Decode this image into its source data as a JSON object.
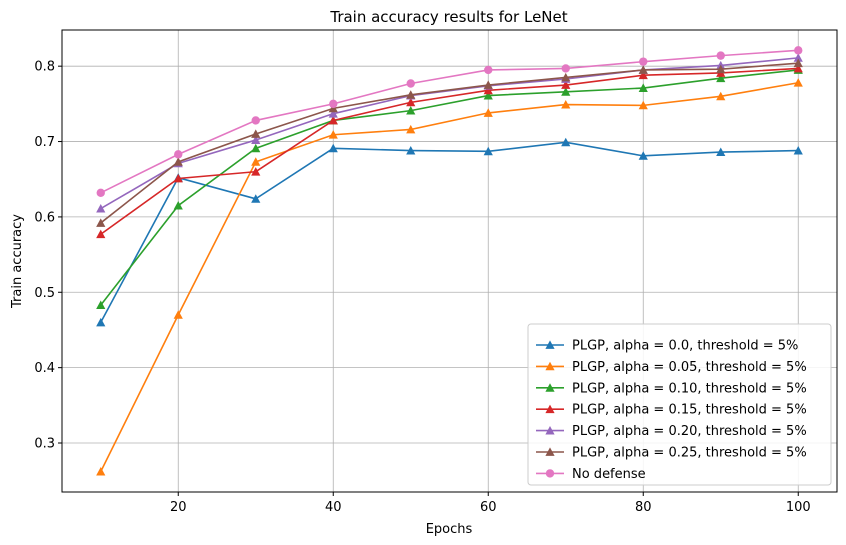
{
  "chart_data": {
    "type": "line",
    "title": "Train accuracy results for LeNet",
    "xlabel": "Epochs",
    "ylabel": "Train accuracy",
    "xlim": [
      5,
      105
    ],
    "ylim": [
      0.235,
      0.848
    ],
    "x_ticks": [
      20,
      40,
      60,
      80,
      100
    ],
    "y_ticks": [
      0.3,
      0.4,
      0.5,
      0.6,
      0.7,
      0.8
    ],
    "grid": true,
    "legend_position": "lower right",
    "x": [
      10,
      20,
      30,
      40,
      50,
      60,
      70,
      80,
      90,
      100
    ],
    "series": [
      {
        "name": "PLGP, alpha = 0.0, threshold = 5%",
        "color": "#1f77b4",
        "marker": "triangle",
        "values": [
          0.46,
          0.652,
          0.624,
          0.691,
          0.688,
          0.687,
          0.699,
          0.681,
          0.686,
          0.688
        ]
      },
      {
        "name": "PLGP, alpha = 0.05, threshold = 5%",
        "color": "#ff7f0e",
        "marker": "triangle",
        "values": [
          0.262,
          0.47,
          0.673,
          0.709,
          0.716,
          0.738,
          0.749,
          0.748,
          0.76,
          0.778
        ]
      },
      {
        "name": "PLGP, alpha = 0.10, threshold = 5%",
        "color": "#2ca02c",
        "marker": "triangle",
        "values": [
          0.483,
          0.615,
          0.691,
          0.728,
          0.741,
          0.761,
          0.766,
          0.771,
          0.784,
          0.795
        ]
      },
      {
        "name": "PLGP, alpha = 0.15, threshold = 5%",
        "color": "#d62728",
        "marker": "triangle",
        "values": [
          0.577,
          0.651,
          0.66,
          0.728,
          0.752,
          0.768,
          0.775,
          0.788,
          0.791,
          0.797
        ]
      },
      {
        "name": "PLGP, alpha = 0.20, threshold = 5%",
        "color": "#9467bd",
        "marker": "triangle",
        "values": [
          0.611,
          0.671,
          0.702,
          0.737,
          0.761,
          0.774,
          0.783,
          0.795,
          0.801,
          0.811
        ]
      },
      {
        "name": "PLGP, alpha = 0.25, threshold = 5%",
        "color": "#8c564b",
        "marker": "triangle",
        "values": [
          0.592,
          0.673,
          0.71,
          0.744,
          0.762,
          0.775,
          0.785,
          0.795,
          0.796,
          0.804
        ]
      },
      {
        "name": "No defense",
        "color": "#e377c2",
        "marker": "circle",
        "values": [
          0.632,
          0.683,
          0.728,
          0.75,
          0.777,
          0.795,
          0.797,
          0.806,
          0.814,
          0.821
        ]
      }
    ]
  }
}
